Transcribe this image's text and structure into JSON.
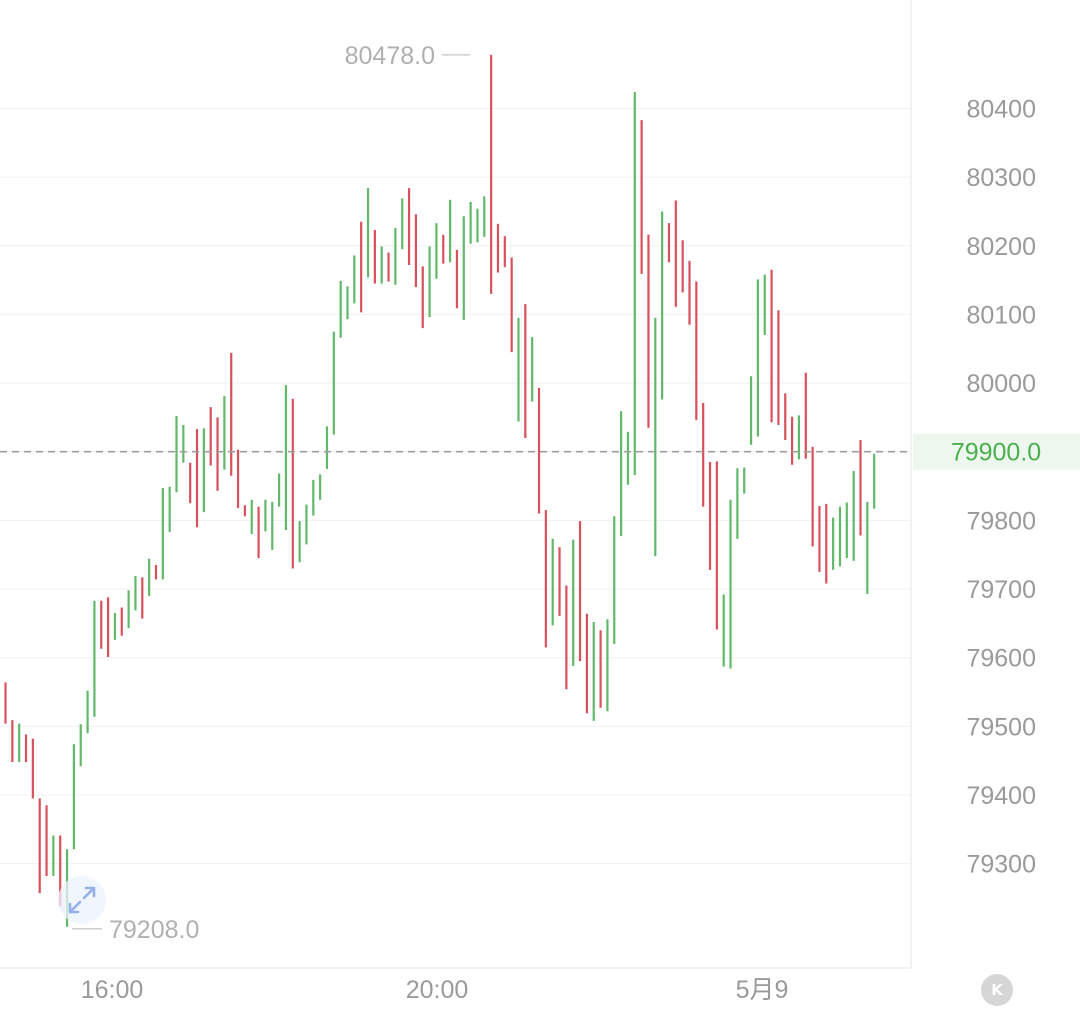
{
  "chart_data": {
    "type": "bar",
    "style": "ohlc-range-bars",
    "y_axis": {
      "ticks": [
        80400,
        80300,
        80200,
        80100,
        80000,
        79900,
        79800,
        79700,
        79600,
        79500,
        79400,
        79300
      ],
      "tick_labels": [
        "80400",
        "80300",
        "80200",
        "80100",
        "80000",
        "79900",
        "79800",
        "79700",
        "79600",
        "79500",
        "79400",
        "79300"
      ],
      "position": "right"
    },
    "x_axis": {
      "tick_labels": [
        "16:00",
        "20:00",
        "5月9"
      ]
    },
    "ylim": [
      79148,
      80558
    ],
    "high_marker": {
      "value": 80478,
      "label": "80478.0"
    },
    "low_marker": {
      "value": 79208,
      "label": "79208.0"
    },
    "current_price": {
      "value": 79900,
      "label": "79900.0"
    },
    "grid": true,
    "colors": {
      "up": "#62b86a",
      "down": "#d8505b",
      "current_price_text": "#4caf50",
      "current_price_bg": "#eef7ee"
    },
    "bars": [
      {
        "h": 79564,
        "l": 79504,
        "d": "down"
      },
      {
        "h": 79509,
        "l": 79448,
        "d": "down"
      },
      {
        "h": 79504,
        "l": 79448,
        "d": "up"
      },
      {
        "h": 79488,
        "l": 79448,
        "d": "down"
      },
      {
        "h": 79482,
        "l": 79395,
        "d": "down"
      },
      {
        "h": 79395,
        "l": 79257,
        "d": "down"
      },
      {
        "h": 79385,
        "l": 79282,
        "d": "down"
      },
      {
        "h": 79341,
        "l": 79282,
        "d": "up"
      },
      {
        "h": 79341,
        "l": 79238,
        "d": "down"
      },
      {
        "h": 79321,
        "l": 79208,
        "d": "up"
      },
      {
        "h": 79474,
        "l": 79321,
        "d": "up"
      },
      {
        "h": 79503,
        "l": 79442,
        "d": "up"
      },
      {
        "h": 79552,
        "l": 79490,
        "d": "up"
      },
      {
        "h": 79683,
        "l": 79514,
        "d": "up"
      },
      {
        "h": 79683,
        "l": 79613,
        "d": "down"
      },
      {
        "h": 79688,
        "l": 79601,
        "d": "down"
      },
      {
        "h": 79665,
        "l": 79626,
        "d": "up"
      },
      {
        "h": 79673,
        "l": 79632,
        "d": "down"
      },
      {
        "h": 79698,
        "l": 79643,
        "d": "up"
      },
      {
        "h": 79719,
        "l": 79669,
        "d": "up"
      },
      {
        "h": 79717,
        "l": 79657,
        "d": "down"
      },
      {
        "h": 79744,
        "l": 79690,
        "d": "up"
      },
      {
        "h": 79735,
        "l": 79714,
        "d": "down"
      },
      {
        "h": 79847,
        "l": 79714,
        "d": "up"
      },
      {
        "h": 79849,
        "l": 79783,
        "d": "up"
      },
      {
        "h": 79952,
        "l": 79841,
        "d": "up"
      },
      {
        "h": 79939,
        "l": 79884,
        "d": "up"
      },
      {
        "h": 79884,
        "l": 79825,
        "d": "down"
      },
      {
        "h": 79933,
        "l": 79790,
        "d": "down"
      },
      {
        "h": 79934,
        "l": 79812,
        "d": "up"
      },
      {
        "h": 79965,
        "l": 79880,
        "d": "down"
      },
      {
        "h": 79950,
        "l": 79843,
        "d": "down"
      },
      {
        "h": 79981,
        "l": 79874,
        "d": "up"
      },
      {
        "h": 80044,
        "l": 79865,
        "d": "down"
      },
      {
        "h": 79903,
        "l": 79818,
        "d": "down"
      },
      {
        "h": 79822,
        "l": 79806,
        "d": "down"
      },
      {
        "h": 79830,
        "l": 79780,
        "d": "up"
      },
      {
        "h": 79820,
        "l": 79745,
        "d": "down"
      },
      {
        "h": 79830,
        "l": 79784,
        "d": "up"
      },
      {
        "h": 79827,
        "l": 79757,
        "d": "up"
      },
      {
        "h": 79868,
        "l": 79820,
        "d": "up"
      },
      {
        "h": 79997,
        "l": 79786,
        "d": "up"
      },
      {
        "h": 79977,
        "l": 79730,
        "d": "down"
      },
      {
        "h": 79799,
        "l": 79739,
        "d": "up"
      },
      {
        "h": 79823,
        "l": 79765,
        "d": "up"
      },
      {
        "h": 79859,
        "l": 79807,
        "d": "up"
      },
      {
        "h": 79867,
        "l": 79830,
        "d": "up"
      },
      {
        "h": 79937,
        "l": 79875,
        "d": "up"
      },
      {
        "h": 80075,
        "l": 79925,
        "d": "up"
      },
      {
        "h": 80149,
        "l": 80066,
        "d": "up"
      },
      {
        "h": 80141,
        "l": 80093,
        "d": "up"
      },
      {
        "h": 80186,
        "l": 80116,
        "d": "up"
      },
      {
        "h": 80235,
        "l": 80103,
        "d": "down"
      },
      {
        "h": 80284,
        "l": 80154,
        "d": "up"
      },
      {
        "h": 80223,
        "l": 80145,
        "d": "down"
      },
      {
        "h": 80199,
        "l": 80145,
        "d": "up"
      },
      {
        "h": 80190,
        "l": 80148,
        "d": "down"
      },
      {
        "h": 80226,
        "l": 80143,
        "d": "up"
      },
      {
        "h": 80269,
        "l": 80195,
        "d": "up"
      },
      {
        "h": 80284,
        "l": 80172,
        "d": "down"
      },
      {
        "h": 80246,
        "l": 80140,
        "d": "down"
      },
      {
        "h": 80170,
        "l": 80080,
        "d": "down"
      },
      {
        "h": 80199,
        "l": 80096,
        "d": "up"
      },
      {
        "h": 80233,
        "l": 80152,
        "d": "up"
      },
      {
        "h": 80216,
        "l": 80174,
        "d": "down"
      },
      {
        "h": 80267,
        "l": 80176,
        "d": "up"
      },
      {
        "h": 80194,
        "l": 80109,
        "d": "down"
      },
      {
        "h": 80243,
        "l": 80092,
        "d": "up"
      },
      {
        "h": 80264,
        "l": 80203,
        "d": "up"
      },
      {
        "h": 80254,
        "l": 80205,
        "d": "up"
      },
      {
        "h": 80272,
        "l": 80213,
        "d": "up"
      },
      {
        "h": 80478,
        "l": 80130,
        "d": "down"
      },
      {
        "h": 80232,
        "l": 80161,
        "d": "down"
      },
      {
        "h": 80214,
        "l": 80169,
        "d": "down"
      },
      {
        "h": 80183,
        "l": 80045,
        "d": "down"
      },
      {
        "h": 80095,
        "l": 79944,
        "d": "up"
      },
      {
        "h": 80115,
        "l": 79920,
        "d": "down"
      },
      {
        "h": 80067,
        "l": 79973,
        "d": "up"
      },
      {
        "h": 79993,
        "l": 79810,
        "d": "down"
      },
      {
        "h": 79815,
        "l": 79615,
        "d": "down"
      },
      {
        "h": 79773,
        "l": 79647,
        "d": "up"
      },
      {
        "h": 79761,
        "l": 79661,
        "d": "down"
      },
      {
        "h": 79705,
        "l": 79554,
        "d": "down"
      },
      {
        "h": 79772,
        "l": 79588,
        "d": "up"
      },
      {
        "h": 79799,
        "l": 79595,
        "d": "down"
      },
      {
        "h": 79664,
        "l": 79519,
        "d": "down"
      },
      {
        "h": 79652,
        "l": 79508,
        "d": "up"
      },
      {
        "h": 79640,
        "l": 79527,
        "d": "down"
      },
      {
        "h": 79656,
        "l": 79522,
        "d": "up"
      },
      {
        "h": 79806,
        "l": 79620,
        "d": "up"
      },
      {
        "h": 79959,
        "l": 79777,
        "d": "up"
      },
      {
        "h": 79929,
        "l": 79852,
        "d": "up"
      },
      {
        "h": 80424,
        "l": 79866,
        "d": "up"
      },
      {
        "h": 80383,
        "l": 80159,
        "d": "down"
      },
      {
        "h": 80216,
        "l": 79935,
        "d": "down"
      },
      {
        "h": 80095,
        "l": 79748,
        "d": "up"
      },
      {
        "h": 80250,
        "l": 79976,
        "d": "up"
      },
      {
        "h": 80233,
        "l": 80176,
        "d": "down"
      },
      {
        "h": 80266,
        "l": 80111,
        "d": "down"
      },
      {
        "h": 80208,
        "l": 80132,
        "d": "down"
      },
      {
        "h": 80178,
        "l": 80085,
        "d": "down"
      },
      {
        "h": 80148,
        "l": 79946,
        "d": "down"
      },
      {
        "h": 79971,
        "l": 79820,
        "d": "down"
      },
      {
        "h": 79885,
        "l": 79728,
        "d": "down"
      },
      {
        "h": 79886,
        "l": 79641,
        "d": "down"
      },
      {
        "h": 79692,
        "l": 79587,
        "d": "up"
      },
      {
        "h": 79830,
        "l": 79584,
        "d": "up"
      },
      {
        "h": 79876,
        "l": 79773,
        "d": "up"
      },
      {
        "h": 79877,
        "l": 79839,
        "d": "up"
      },
      {
        "h": 80010,
        "l": 79910,
        "d": "up"
      },
      {
        "h": 80151,
        "l": 79922,
        "d": "up"
      },
      {
        "h": 80158,
        "l": 80070,
        "d": "up"
      },
      {
        "h": 80165,
        "l": 79943,
        "d": "down"
      },
      {
        "h": 80106,
        "l": 79939,
        "d": "down"
      },
      {
        "h": 79985,
        "l": 79917,
        "d": "down"
      },
      {
        "h": 79951,
        "l": 79881,
        "d": "down"
      },
      {
        "h": 79953,
        "l": 79889,
        "d": "up"
      },
      {
        "h": 80015,
        "l": 79890,
        "d": "down"
      },
      {
        "h": 79907,
        "l": 79762,
        "d": "down"
      },
      {
        "h": 79821,
        "l": 79725,
        "d": "down"
      },
      {
        "h": 79824,
        "l": 79708,
        "d": "down"
      },
      {
        "h": 79804,
        "l": 79728,
        "d": "up"
      },
      {
        "h": 79820,
        "l": 79733,
        "d": "up"
      },
      {
        "h": 79826,
        "l": 79745,
        "d": "up"
      },
      {
        "h": 79872,
        "l": 79741,
        "d": "up"
      },
      {
        "h": 79917,
        "l": 79778,
        "d": "down"
      },
      {
        "h": 79827,
        "l": 79693,
        "d": "up"
      },
      {
        "h": 79897,
        "l": 79817,
        "d": "up"
      }
    ]
  }
}
